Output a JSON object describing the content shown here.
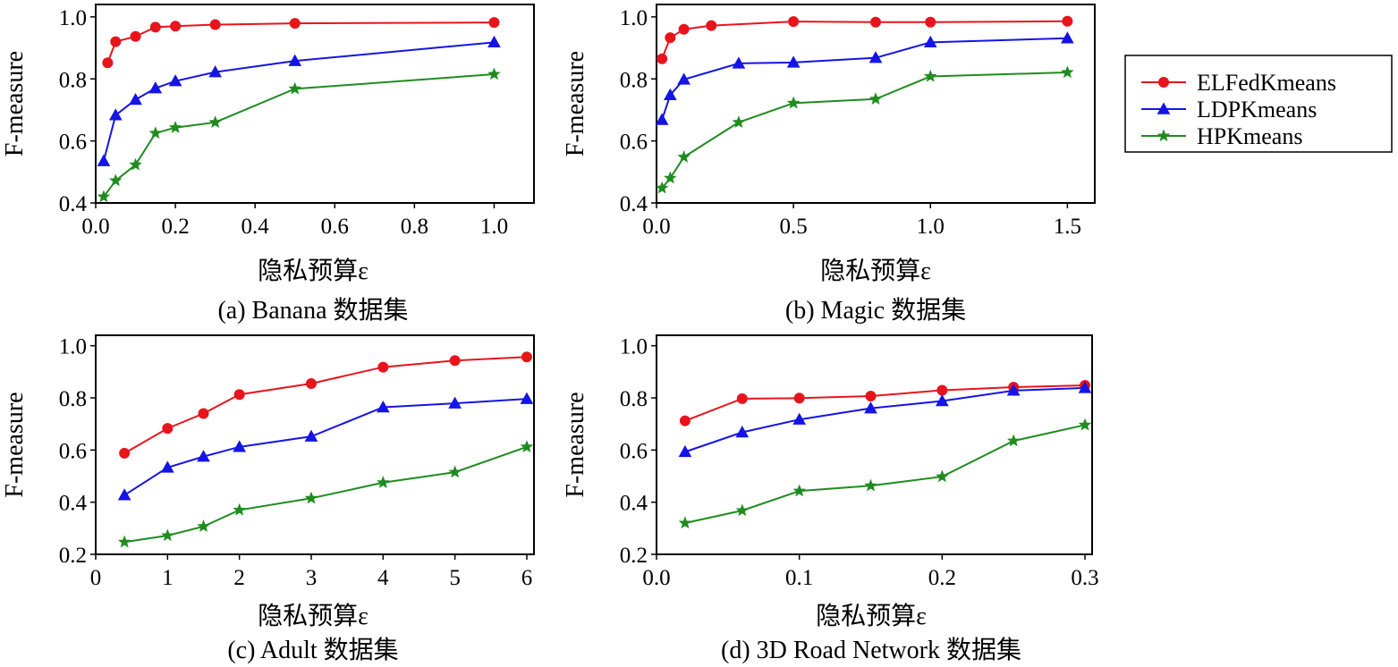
{
  "legend": {
    "entries": [
      {
        "name": "ELFedKmeans",
        "color": "#e8141c",
        "marker": "circle"
      },
      {
        "name": "LDPKmeans",
        "color": "#1414e6",
        "marker": "triangle"
      },
      {
        "name": "HPKmeans",
        "color": "#1e8c1e",
        "marker": "star"
      }
    ],
    "placement": "right"
  },
  "chart_data": [
    {
      "type": "line",
      "caption": "(a) Banana 数据集",
      "xlabel": "隐私预算ε",
      "ylabel": "F-measure",
      "xlim": [
        0,
        1.1
      ],
      "ylim": [
        0.4,
        1.04
      ],
      "xticks": [
        0.0,
        0.2,
        0.4,
        0.6,
        0.8,
        1.0
      ],
      "xtick_labels": [
        "0.0",
        "0.2",
        "0.4",
        "0.6",
        "0.8",
        "1.0"
      ],
      "yticks": [
        0.4,
        0.6,
        0.8,
        1.0
      ],
      "ytick_labels": [
        "0.4",
        "0.6",
        "0.8",
        "1.0"
      ],
      "grid": false,
      "series": [
        {
          "name": "ELFedKmeans",
          "x": [
            0.03,
            0.05,
            0.1,
            0.15,
            0.2,
            0.3,
            0.5,
            1.0
          ],
          "y": [
            0.852,
            0.92,
            0.937,
            0.967,
            0.97,
            0.975,
            0.979,
            0.982
          ]
        },
        {
          "name": "LDPKmeans",
          "x": [
            0.02,
            0.05,
            0.1,
            0.15,
            0.2,
            0.3,
            0.5,
            1.0
          ],
          "y": [
            0.535,
            0.683,
            0.733,
            0.77,
            0.793,
            0.822,
            0.858,
            0.918
          ]
        },
        {
          "name": "HPKmeans",
          "x": [
            0.02,
            0.05,
            0.1,
            0.15,
            0.2,
            0.3,
            0.5,
            1.0
          ],
          "y": [
            0.42,
            0.472,
            0.523,
            0.625,
            0.643,
            0.66,
            0.768,
            0.815
          ]
        }
      ]
    },
    {
      "type": "line",
      "caption": "(b) Magic 数据集",
      "xlabel": "隐私预算ε",
      "ylabel": "F-measure",
      "xlim": [
        0,
        1.6
      ],
      "ylim": [
        0.4,
        1.04
      ],
      "xticks": [
        0.0,
        0.5,
        1.0,
        1.5
      ],
      "xtick_labels": [
        "0.0",
        "0.5",
        "1.0",
        "1.5"
      ],
      "yticks": [
        0.4,
        0.6,
        0.8,
        1.0
      ],
      "ytick_labels": [
        "0.4",
        "0.6",
        "0.8",
        "1.0"
      ],
      "grid": false,
      "series": [
        {
          "name": "ELFedKmeans",
          "x": [
            0.02,
            0.05,
            0.1,
            0.2,
            0.5,
            0.8,
            1.0,
            1.5
          ],
          "y": [
            0.865,
            0.933,
            0.96,
            0.972,
            0.985,
            0.983,
            0.983,
            0.986
          ]
        },
        {
          "name": "LDPKmeans",
          "x": [
            0.02,
            0.05,
            0.1,
            0.3,
            0.5,
            0.8,
            1.0,
            1.5
          ],
          "y": [
            0.668,
            0.748,
            0.798,
            0.85,
            0.853,
            0.868,
            0.918,
            0.931
          ]
        },
        {
          "name": "HPKmeans",
          "x": [
            0.02,
            0.05,
            0.1,
            0.3,
            0.5,
            0.8,
            1.0,
            1.5
          ],
          "y": [
            0.448,
            0.48,
            0.548,
            0.66,
            0.722,
            0.735,
            0.808,
            0.821
          ]
        }
      ]
    },
    {
      "type": "line",
      "caption": "(c) Adult 数据集",
      "xlabel": "隐私预算ε",
      "ylabel": "F-measure",
      "xlim": [
        0,
        6.1
      ],
      "ylim": [
        0.2,
        1.04
      ],
      "xticks": [
        0,
        1,
        2,
        3,
        4,
        5,
        6
      ],
      "xtick_labels": [
        "0",
        "1",
        "2",
        "3",
        "4",
        "5",
        "6"
      ],
      "yticks": [
        0.2,
        0.4,
        0.6,
        0.8,
        1.0
      ],
      "ytick_labels": [
        "0.2",
        "0.4",
        "0.6",
        "0.8",
        "1.0"
      ],
      "grid": false,
      "series": [
        {
          "name": "ELFedKmeans",
          "x": [
            0.4,
            1,
            1.5,
            2,
            3,
            4,
            5,
            6
          ],
          "y": [
            0.588,
            0.683,
            0.74,
            0.813,
            0.855,
            0.918,
            0.943,
            0.957
          ]
        },
        {
          "name": "LDPKmeans",
          "x": [
            0.4,
            1,
            1.5,
            2,
            3,
            4,
            5,
            6
          ],
          "y": [
            0.427,
            0.533,
            0.575,
            0.612,
            0.652,
            0.764,
            0.779,
            0.796
          ]
        },
        {
          "name": "HPKmeans",
          "x": [
            0.4,
            1,
            1.5,
            2,
            3,
            4,
            5,
            6
          ],
          "y": [
            0.247,
            0.272,
            0.307,
            0.37,
            0.415,
            0.475,
            0.515,
            0.612
          ]
        }
      ]
    },
    {
      "type": "line",
      "caption": "(d) 3D Road Network 数据集",
      "xlabel": "隐私预算ε",
      "ylabel": "F-measure",
      "xlim": [
        0,
        0.305
      ],
      "ylim": [
        0.2,
        1.04
      ],
      "xticks": [
        0.0,
        0.1,
        0.2,
        0.3
      ],
      "xtick_labels": [
        "0.0",
        "0.1",
        "0.2",
        "0.3"
      ],
      "yticks": [
        0.2,
        0.4,
        0.6,
        0.8,
        1.0
      ],
      "ytick_labels": [
        "0.2",
        "0.4",
        "0.6",
        "0.8",
        "1.0"
      ],
      "grid": false,
      "series": [
        {
          "name": "ELFedKmeans",
          "x": [
            0.02,
            0.06,
            0.1,
            0.15,
            0.2,
            0.25,
            0.3
          ],
          "y": [
            0.712,
            0.797,
            0.799,
            0.807,
            0.829,
            0.841,
            0.848
          ]
        },
        {
          "name": "LDPKmeans",
          "x": [
            0.02,
            0.06,
            0.1,
            0.15,
            0.2,
            0.25,
            0.3
          ],
          "y": [
            0.593,
            0.668,
            0.717,
            0.76,
            0.788,
            0.828,
            0.838
          ]
        },
        {
          "name": "HPKmeans",
          "x": [
            0.02,
            0.06,
            0.1,
            0.15,
            0.2,
            0.25,
            0.3
          ],
          "y": [
            0.32,
            0.368,
            0.443,
            0.463,
            0.498,
            0.635,
            0.696
          ]
        }
      ]
    }
  ]
}
